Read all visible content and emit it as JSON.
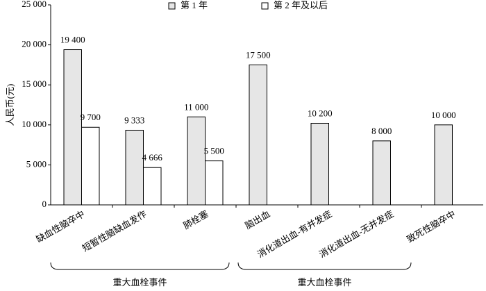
{
  "chart_data": {
    "type": "bar",
    "ylabel": "人民币(元)",
    "categories": [
      "缺血性脑卒中",
      "短暂性脑缺血发作",
      "肺栓塞",
      "脑出血",
      "消化道出血-有并发症",
      "消化道出血-无并发症",
      "致死性脑卒中"
    ],
    "series": [
      {
        "name": "第 1 年",
        "color": "#e6e6e6",
        "values": [
          19400,
          9333,
          11000,
          17500,
          10200,
          8000,
          10000
        ],
        "value_labels": [
          "19 400",
          "9 333",
          "11 000",
          "17 500",
          "10 200",
          "8 000",
          "10 000"
        ]
      },
      {
        "name": "第 2 年及以后",
        "color": "#ffffff",
        "values": [
          9700,
          4666,
          5500,
          null,
          null,
          null,
          null
        ],
        "value_labels": [
          "9 700",
          "4 666",
          "5 500",
          null,
          null,
          null,
          null
        ]
      }
    ],
    "ylim": [
      0,
      25000
    ],
    "yticks": [
      0,
      {
        "value": 5000,
        "label": "5 000"
      },
      {
        "value": 10000,
        "label": "10 000"
      },
      {
        "value": 15000,
        "label": "15 000"
      },
      {
        "value": 20000,
        "label": "20 000"
      },
      {
        "value": 25000,
        "label": "25 000"
      }
    ],
    "grid": false,
    "legend": "top",
    "group_labels": [
      "重大血栓事件",
      "重大血栓事件"
    ]
  }
}
